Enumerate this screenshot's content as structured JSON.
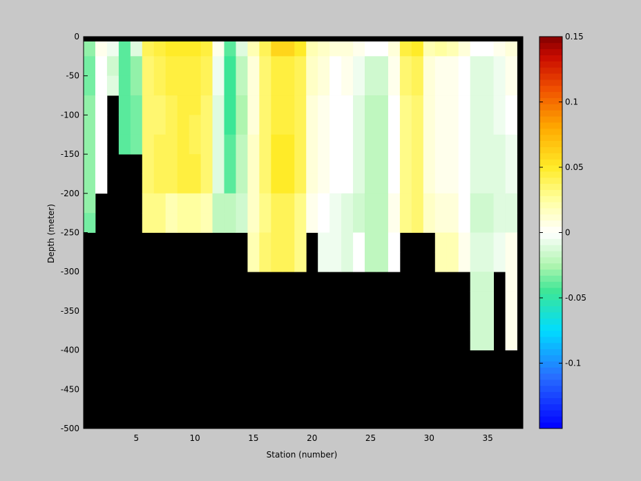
{
  "chart_data": {
    "type": "heatmap",
    "title": "",
    "xlabel": "Station (number)",
    "ylabel": "Depth (meter)",
    "xlim": [
      1,
      38.5
    ],
    "ylim": [
      -500,
      0
    ],
    "x_ticks": [
      5,
      10,
      15,
      20,
      25,
      30,
      35
    ],
    "y_ticks": [
      0,
      -50,
      -100,
      -150,
      -200,
      -250,
      -300,
      -350,
      -400,
      -450,
      -500
    ],
    "colorbar": {
      "clim": [
        -0.15,
        0.15
      ],
      "ticks": [
        0.15,
        0.1,
        0.05,
        0,
        -0.05,
        -0.1
      ],
      "colormap": "jet-like (blue - cyan - green - white - yellow - orange - red)",
      "location": "right"
    },
    "land_color": "#000000",
    "surface_line": "black bar at depth 0",
    "bottom_depth_by_station": [
      {
        "stations": [
          1,
          1
        ],
        "depth": -250
      },
      {
        "stations": [
          2,
          2
        ],
        "depth": -200
      },
      {
        "stations": [
          3,
          3
        ],
        "depth": -75
      },
      {
        "stations": [
          4,
          5
        ],
        "depth": -150
      },
      {
        "stations": [
          6,
          14
        ],
        "depth": -250
      },
      {
        "stations": [
          15,
          19
        ],
        "depth": -300
      },
      {
        "stations": [
          20,
          20
        ],
        "depth": -250
      },
      {
        "stations": [
          21,
          27
        ],
        "depth": -300
      },
      {
        "stations": [
          28,
          30
        ],
        "depth": -250
      },
      {
        "stations": [
          31,
          33
        ],
        "depth": -300
      },
      {
        "stations": [
          34,
          35
        ],
        "depth": -400
      },
      {
        "stations": [
          36,
          36
        ],
        "depth": -300
      },
      {
        "stations": [
          37,
          37
        ],
        "depth": -400
      }
    ],
    "depth_bins": [
      -12.5,
      -37.5,
      -62.5,
      -87.5,
      -112.5,
      -137.5,
      -162.5,
      -187.5,
      -212.5,
      -237.5,
      -262.5,
      -287.5,
      -312.5,
      -337.5,
      -362.5,
      -387.5
    ],
    "station_columns": [
      {
        "station": 1,
        "values": [
          -0.03,
          -0.035,
          -0.035,
          -0.03,
          -0.03,
          -0.03,
          -0.03,
          -0.03,
          -0.03,
          -0.035
        ]
      },
      {
        "station": 2,
        "values": [
          0.005,
          0.0,
          0.0,
          0.0,
          0.0,
          0.0,
          0.0,
          0.0
        ]
      },
      {
        "station": 3,
        "values": [
          -0.005,
          -0.015,
          -0.01
        ]
      },
      {
        "station": 4,
        "values": [
          -0.04,
          -0.04,
          -0.04,
          -0.04,
          -0.04,
          -0.04
        ]
      },
      {
        "station": 5,
        "values": [
          -0.01,
          -0.03,
          -0.03,
          -0.035,
          -0.035,
          -0.035
        ]
      },
      {
        "station": 6,
        "values": [
          0.04,
          0.035,
          0.035,
          0.035,
          0.035,
          0.035,
          0.035,
          0.035,
          0.03,
          0.03
        ]
      },
      {
        "station": 7,
        "values": [
          0.045,
          0.04,
          0.04,
          0.035,
          0.035,
          0.04,
          0.04,
          0.04,
          0.03,
          0.03
        ]
      },
      {
        "station": 8,
        "values": [
          0.05,
          0.045,
          0.045,
          0.04,
          0.04,
          0.04,
          0.04,
          0.04,
          0.02,
          0.02
        ]
      },
      {
        "station": 9,
        "values": [
          0.05,
          0.045,
          0.045,
          0.045,
          0.045,
          0.045,
          0.045,
          0.045,
          0.025,
          0.025
        ]
      },
      {
        "station": 10,
        "values": [
          0.05,
          0.045,
          0.045,
          0.045,
          0.04,
          0.04,
          0.045,
          0.045,
          0.025,
          0.025
        ]
      },
      {
        "station": 11,
        "values": [
          0.045,
          0.04,
          0.04,
          0.035,
          0.035,
          0.035,
          0.035,
          0.035,
          0.02,
          0.02
        ]
      },
      {
        "station": 12,
        "values": [
          0.005,
          -0.005,
          -0.005,
          -0.01,
          -0.01,
          -0.01,
          -0.01,
          -0.01,
          -0.02,
          -0.02
        ]
      },
      {
        "station": 13,
        "values": [
          -0.04,
          -0.045,
          -0.045,
          -0.045,
          -0.045,
          -0.04,
          -0.04,
          -0.04,
          -0.02,
          -0.02
        ]
      },
      {
        "station": 14,
        "values": [
          -0.01,
          -0.02,
          -0.02,
          -0.025,
          -0.025,
          -0.02,
          -0.02,
          -0.02,
          -0.015,
          -0.015
        ]
      },
      {
        "station": 15,
        "values": [
          0.02,
          0.01,
          0.01,
          0.01,
          0.01,
          0.015,
          0.015,
          0.015,
          0.015,
          0.015,
          0.02,
          0.02
        ]
      },
      {
        "station": 16,
        "values": [
          0.04,
          0.035,
          0.035,
          0.035,
          0.035,
          0.035,
          0.035,
          0.035,
          0.03,
          0.03,
          0.035,
          0.035
        ]
      },
      {
        "station": 17,
        "values": [
          0.06,
          0.045,
          0.045,
          0.045,
          0.045,
          0.05,
          0.05,
          0.05,
          0.04,
          0.04,
          0.04,
          0.04
        ]
      },
      {
        "station": 18,
        "values": [
          0.06,
          0.045,
          0.045,
          0.045,
          0.045,
          0.05,
          0.05,
          0.05,
          0.04,
          0.04,
          0.04,
          0.04
        ]
      },
      {
        "station": 19,
        "values": [
          0.05,
          0.04,
          0.04,
          0.04,
          0.04,
          0.04,
          0.04,
          0.04,
          0.03,
          0.03,
          0.03,
          0.03
        ]
      },
      {
        "station": 20,
        "values": [
          0.02,
          0.015,
          0.015,
          0.01,
          0.01,
          0.01,
          0.01,
          0.01,
          0.005,
          0.005
        ]
      },
      {
        "station": 21,
        "values": [
          0.015,
          0.01,
          0.01,
          0.005,
          0.005,
          0.005,
          0.005,
          0.005,
          0.0,
          0.0,
          -0.005,
          -0.005
        ]
      },
      {
        "station": 22,
        "values": [
          0.01,
          0.0,
          0.0,
          0.0,
          0.0,
          0.0,
          0.0,
          0.0,
          -0.005,
          -0.005,
          -0.005,
          -0.005
        ]
      },
      {
        "station": 23,
        "values": [
          0.01,
          0.005,
          0.005,
          0.0,
          0.0,
          0.0,
          0.0,
          0.0,
          -0.01,
          -0.01,
          -0.01,
          -0.01
        ]
      },
      {
        "station": 24,
        "values": [
          0.005,
          -0.005,
          -0.005,
          -0.01,
          -0.01,
          -0.01,
          -0.01,
          -0.01,
          -0.015,
          -0.015,
          0.0,
          0.0
        ]
      },
      {
        "station": 25,
        "values": [
          0.0,
          -0.015,
          -0.015,
          -0.02,
          -0.02,
          -0.02,
          -0.02,
          -0.02,
          -0.02,
          -0.02,
          -0.02,
          -0.02
        ]
      },
      {
        "station": 26,
        "values": [
          0.0,
          -0.015,
          -0.015,
          -0.02,
          -0.02,
          -0.02,
          -0.02,
          -0.02,
          -0.02,
          -0.02,
          -0.02,
          -0.02
        ]
      },
      {
        "station": 27,
        "values": [
          0.01,
          0.005,
          0.005,
          0.0,
          0.0,
          0.0,
          0.0,
          0.0,
          0.005,
          0.005,
          0.0,
          0.0
        ]
      },
      {
        "station": 28,
        "values": [
          0.045,
          0.035,
          0.035,
          0.03,
          0.03,
          0.03,
          0.03,
          0.03,
          0.03,
          0.03
        ]
      },
      {
        "station": 29,
        "values": [
          0.05,
          0.04,
          0.04,
          0.035,
          0.035,
          0.035,
          0.035,
          0.035,
          0.035,
          0.035
        ]
      },
      {
        "station": 30,
        "values": [
          0.02,
          0.01,
          0.01,
          0.01,
          0.01,
          0.01,
          0.01,
          0.01,
          0.015,
          0.015
        ]
      },
      {
        "station": 31,
        "values": [
          0.025,
          0.005,
          0.005,
          0.005,
          0.005,
          0.005,
          0.005,
          0.005,
          0.01,
          0.01,
          0.02,
          0.02
        ]
      },
      {
        "station": 32,
        "values": [
          0.02,
          0.005,
          0.005,
          0.005,
          0.005,
          0.005,
          0.005,
          0.005,
          0.01,
          0.01,
          0.02,
          0.02
        ]
      },
      {
        "station": 33,
        "values": [
          0.01,
          0.0,
          0.0,
          0.0,
          0.0,
          0.0,
          0.0,
          0.0,
          0.0,
          0.0,
          0.005,
          0.005
        ]
      },
      {
        "station": 34,
        "values": [
          0.0,
          -0.01,
          -0.01,
          -0.01,
          -0.01,
          -0.01,
          -0.01,
          -0.01,
          -0.015,
          -0.015,
          -0.01,
          -0.01,
          -0.015,
          -0.015,
          -0.015,
          -0.015
        ]
      },
      {
        "station": 35,
        "values": [
          0.0,
          -0.01,
          -0.01,
          -0.01,
          -0.01,
          -0.01,
          -0.01,
          -0.01,
          -0.015,
          -0.015,
          -0.01,
          -0.01,
          -0.015,
          -0.015,
          -0.015,
          -0.015
        ]
      },
      {
        "station": 36,
        "values": [
          0.005,
          -0.005,
          -0.005,
          -0.005,
          -0.005,
          -0.01,
          -0.01,
          -0.01,
          -0.01,
          -0.01,
          -0.005,
          -0.005
        ]
      },
      {
        "station": 37,
        "values": [
          0.01,
          0.005,
          0.005,
          0.0,
          0.0,
          -0.005,
          -0.005,
          -0.005,
          -0.01,
          -0.01,
          0.005,
          0.005,
          0.005,
          0.005,
          0.005,
          0.005
        ]
      }
    ]
  }
}
